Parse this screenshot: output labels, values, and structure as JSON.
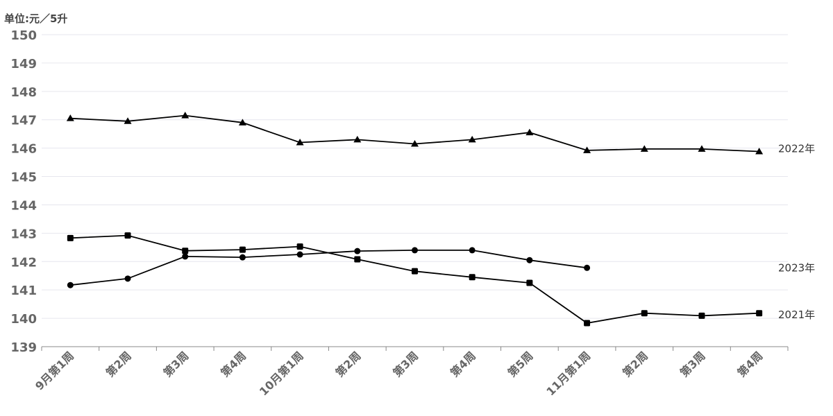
{
  "chart_data": {
    "type": "line",
    "unit_label": "单位:元／5升",
    "categories": [
      "9月第1周",
      "第2周",
      "第3周",
      "第4周",
      "10月第1周",
      "第2周",
      "第3周",
      "第4周",
      "第5周",
      "11月第1周",
      "第2周",
      "第3周",
      "第4周"
    ],
    "ylim": [
      139,
      150
    ],
    "yticks": [
      139,
      140,
      141,
      142,
      143,
      144,
      145,
      146,
      147,
      148,
      149,
      150
    ],
    "grid": true,
    "series": [
      {
        "name": "2022年",
        "marker": "triangle",
        "values": [
          147.05,
          146.95,
          147.15,
          146.9,
          146.2,
          146.3,
          146.15,
          146.3,
          146.55,
          145.92,
          145.97,
          145.97,
          145.88
        ]
      },
      {
        "name": "2023年",
        "marker": "circle",
        "values": [
          141.17,
          141.4,
          142.18,
          142.15,
          142.25,
          142.37,
          142.4,
          142.4,
          142.05,
          141.78,
          null,
          null,
          null
        ]
      },
      {
        "name": "2021年",
        "marker": "square",
        "values": [
          142.83,
          142.92,
          142.38,
          142.42,
          142.53,
          142.08,
          141.66,
          141.45,
          141.25,
          139.83,
          140.18,
          140.09,
          140.18
        ]
      }
    ]
  }
}
